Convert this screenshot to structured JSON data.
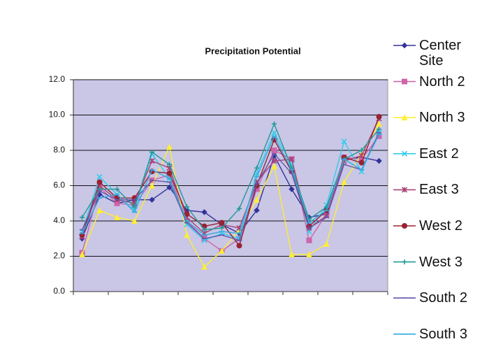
{
  "chart_data": {
    "type": "line",
    "title": "Precipitation Potential",
    "categories": [
      null,
      null,
      null,
      null,
      null,
      null,
      null,
      null,
      null,
      null,
      null,
      null,
      null,
      null,
      null,
      null,
      null,
      null
    ],
    "ylim": [
      0,
      12
    ],
    "yticks": [
      {
        "value": 0,
        "label": "0.0"
      },
      {
        "value": 2,
        "label": "2.0"
      },
      {
        "value": 4,
        "label": "4.0"
      },
      {
        "value": 6,
        "label": "6.0"
      },
      {
        "value": 8,
        "label": "8.0"
      },
      {
        "value": 10,
        "label": "10.0"
      },
      {
        "value": 12,
        "label": "12.0"
      }
    ],
    "grid": true,
    "legend": "right",
    "series": [
      {
        "name": "Center Site",
        "color": "#333399",
        "marker": "diamond",
        "values": [
          3.0,
          5.5,
          5.0,
          5.2,
          5.2,
          5.9,
          4.6,
          4.5,
          3.8,
          3.3,
          4.6,
          7.7,
          5.8,
          4.2,
          4.4,
          7.5,
          7.6,
          7.4
        ]
      },
      {
        "name": "North 2",
        "color": "#cc66aa",
        "marker": "square",
        "values": [
          2.2,
          5.9,
          5.0,
          4.9,
          6.3,
          6.6,
          4.0,
          3.0,
          2.3,
          3.0,
          5.8,
          8.0,
          7.5,
          2.9,
          4.4,
          7.6,
          7.5,
          8.8
        ]
      },
      {
        "name": "North 3",
        "color": "#ffee33",
        "marker": "triangle",
        "values": [
          2.1,
          4.6,
          4.2,
          4.0,
          6.0,
          8.2,
          3.2,
          1.4,
          2.3,
          3.5,
          5.2,
          7.1,
          2.1,
          2.1,
          2.7,
          6.2,
          7.8,
          9.5
        ]
      },
      {
        "name": "East 2",
        "color": "#33ccee",
        "marker": "x",
        "values": [
          3.4,
          6.5,
          5.5,
          4.6,
          7.8,
          6.4,
          3.8,
          2.9,
          3.3,
          3.0,
          6.7,
          9.0,
          7.2,
          3.4,
          4.9,
          8.5,
          6.8,
          9.0
        ]
      },
      {
        "name": "East 3",
        "color": "#aa4477",
        "marker": "star",
        "values": [
          3.1,
          6.0,
          5.2,
          5.0,
          7.4,
          7.0,
          4.2,
          3.3,
          3.8,
          3.6,
          6.2,
          7.4,
          7.5,
          3.6,
          4.3,
          7.4,
          7.7,
          9.8
        ]
      },
      {
        "name": "West 2",
        "color": "#992233",
        "marker": "circle",
        "values": [
          3.2,
          6.2,
          5.3,
          5.3,
          6.8,
          6.7,
          4.4,
          3.7,
          3.9,
          2.6,
          6.0,
          8.6,
          6.8,
          3.7,
          4.6,
          7.6,
          7.3,
          9.9
        ]
      },
      {
        "name": "West 3",
        "color": "#229999",
        "marker": "plus",
        "values": [
          4.2,
          5.8,
          5.8,
          4.8,
          7.9,
          7.2,
          4.8,
          3.5,
          3.6,
          4.7,
          7.0,
          9.5,
          7.0,
          4.1,
          4.8,
          7.5,
          8.0,
          9.2
        ]
      },
      {
        "name": "South 2",
        "color": "#6655aa",
        "marker": "dash",
        "values": [
          3.5,
          5.7,
          5.2,
          5.2,
          6.3,
          6.2,
          3.9,
          3.0,
          3.2,
          2.9,
          6.1,
          7.8,
          6.7,
          3.6,
          4.2,
          7.2,
          6.9,
          9.0
        ]
      },
      {
        "name": "South 3",
        "color": "#33aadd",
        "marker": "dash",
        "values": [
          3.3,
          5.3,
          5.5,
          4.5,
          6.9,
          6.4,
          4.0,
          3.2,
          3.4,
          3.3,
          6.5,
          8.8,
          6.9,
          3.9,
          4.6,
          7.5,
          6.9,
          8.9
        ]
      }
    ]
  }
}
